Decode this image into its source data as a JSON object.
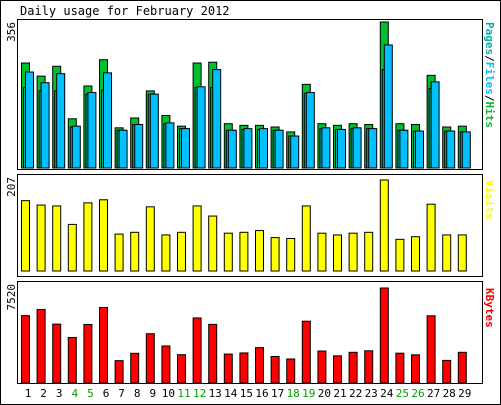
{
  "title": "Daily usage for February 2012",
  "colors": {
    "hits": "#00c030",
    "files": "#00c0ff",
    "pages": "#00b0b0",
    "visits": "#ffff00",
    "kbytes": "#ff0000",
    "weekday_label": "#000000",
    "weekend_label": "#00a000",
    "panel_bg": "#ffffff",
    "outer_bg": "#ffffff"
  },
  "chart_data": [
    {
      "type": "bar",
      "name": "hits-files-pages",
      "max_label": "356",
      "right_label": "Pages/Files/Hits",
      "right_label_parts": [
        "Pages",
        "/",
        "Files",
        "/",
        "Hits"
      ],
      "ylim": [
        0,
        356
      ],
      "categories": [
        1,
        2,
        3,
        4,
        5,
        6,
        7,
        8,
        9,
        10,
        11,
        12,
        13,
        14,
        15,
        16,
        17,
        18,
        19,
        20,
        21,
        22,
        23,
        24,
        25,
        26,
        27,
        28,
        29
      ],
      "series": [
        {
          "name": "Hits",
          "values": [
            256,
            224,
            248,
            120,
            200,
            264,
            98,
            122,
            188,
            128,
            102,
            256,
            258,
            108,
            104,
            104,
            100,
            88,
            204,
            108,
            104,
            108,
            106,
            356,
            108,
            106,
            226,
            100,
            102
          ]
        },
        {
          "name": "Files",
          "values": [
            234,
            208,
            230,
            102,
            184,
            232,
            92,
            106,
            180,
            110,
            96,
            198,
            240,
            92,
            96,
            96,
            92,
            78,
            184,
            98,
            94,
            98,
            96,
            300,
            92,
            90,
            210,
            90,
            88
          ]
        },
        {
          "name": "Pages",
          "values": [
            196,
            188,
            188,
            100,
            180,
            190,
            92,
            106,
            180,
            108,
            96,
            196,
            196,
            92,
            94,
            94,
            92,
            78,
            182,
            96,
            94,
            96,
            96,
            240,
            92,
            90,
            194,
            90,
            88
          ]
        }
      ]
    },
    {
      "type": "bar",
      "name": "visits",
      "max_label": "207",
      "right_label": "Visits",
      "ylim": [
        0,
        207
      ],
      "categories": [
        1,
        2,
        3,
        4,
        5,
        6,
        7,
        8,
        9,
        10,
        11,
        12,
        13,
        14,
        15,
        16,
        17,
        18,
        19,
        20,
        21,
        22,
        23,
        24,
        25,
        26,
        27,
        28,
        29
      ],
      "series": [
        {
          "name": "Visits",
          "values": [
            160,
            150,
            148,
            106,
            155,
            162,
            84,
            88,
            146,
            82,
            88,
            148,
            125,
            86,
            88,
            92,
            76,
            74,
            148,
            86,
            82,
            86,
            88,
            207,
            72,
            78,
            152,
            82,
            82
          ]
        }
      ]
    },
    {
      "type": "bar",
      "name": "kbytes",
      "max_label": "7520",
      "right_label": "KBytes",
      "ylim": [
        0,
        7520
      ],
      "categories": [
        1,
        2,
        3,
        4,
        5,
        6,
        7,
        8,
        9,
        10,
        11,
        12,
        13,
        14,
        15,
        16,
        17,
        18,
        19,
        20,
        21,
        22,
        23,
        24,
        25,
        26,
        27,
        28,
        29
      ],
      "series": [
        {
          "name": "KBytes",
          "values": [
            5330,
            5820,
            4660,
            3600,
            4630,
            5980,
            1770,
            2350,
            3900,
            2930,
            2240,
            5150,
            4640,
            2290,
            2380,
            2800,
            2100,
            1900,
            4890,
            2530,
            2150,
            2430,
            2550,
            7520,
            2360,
            2230,
            5320,
            1790,
            2430
          ]
        }
      ]
    }
  ],
  "weekend_days": [
    4,
    5,
    11,
    12,
    18,
    19,
    25,
    26
  ]
}
